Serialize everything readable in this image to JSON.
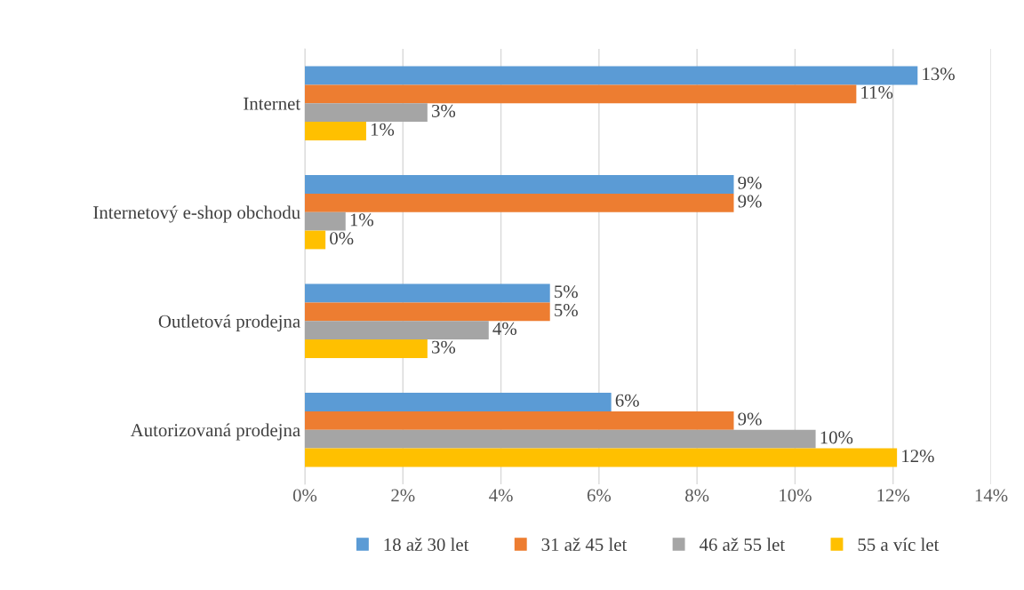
{
  "chart_data": {
    "type": "bar",
    "orientation": "horizontal",
    "categories": [
      "Internet",
      "Internetový e-shop obchodu",
      "Outletová prodejna",
      "Autorizovaná prodejna"
    ],
    "series": [
      {
        "name": "18 až 30 let",
        "color": "#5b9bd5",
        "values": [
          12.5,
          8.75,
          5.0,
          6.25
        ],
        "value_labels": [
          "13%",
          "9%",
          "5%",
          "6%"
        ]
      },
      {
        "name": "31 až 45 let",
        "color": "#ed7d31",
        "values": [
          11.25,
          8.75,
          5.0,
          8.75
        ],
        "value_labels": [
          "11%",
          "9%",
          "5%",
          "9%"
        ]
      },
      {
        "name": "46 až 55 let",
        "color": "#a5a5a5",
        "values": [
          2.5,
          0.83,
          3.75,
          10.42
        ],
        "value_labels": [
          "3%",
          "1%",
          "4%",
          "10%"
        ]
      },
      {
        "name": "55 a víc let",
        "color": "#ffc000",
        "values": [
          1.25,
          0.42,
          2.5,
          12.08
        ],
        "value_labels": [
          "1%",
          "0%",
          "3%",
          "12%"
        ]
      }
    ],
    "xlim": [
      0,
      14
    ],
    "xticks": [
      {
        "value": 0,
        "label": "0%"
      },
      {
        "value": 2,
        "label": "2%"
      },
      {
        "value": 4,
        "label": "4%"
      },
      {
        "value": 6,
        "label": "6%"
      },
      {
        "value": 8,
        "label": "8%"
      },
      {
        "value": 10,
        "label": "10%"
      },
      {
        "value": 12,
        "label": "12%"
      },
      {
        "value": 14,
        "label": "14%"
      }
    ],
    "grid": "x",
    "legend": "bottom"
  }
}
